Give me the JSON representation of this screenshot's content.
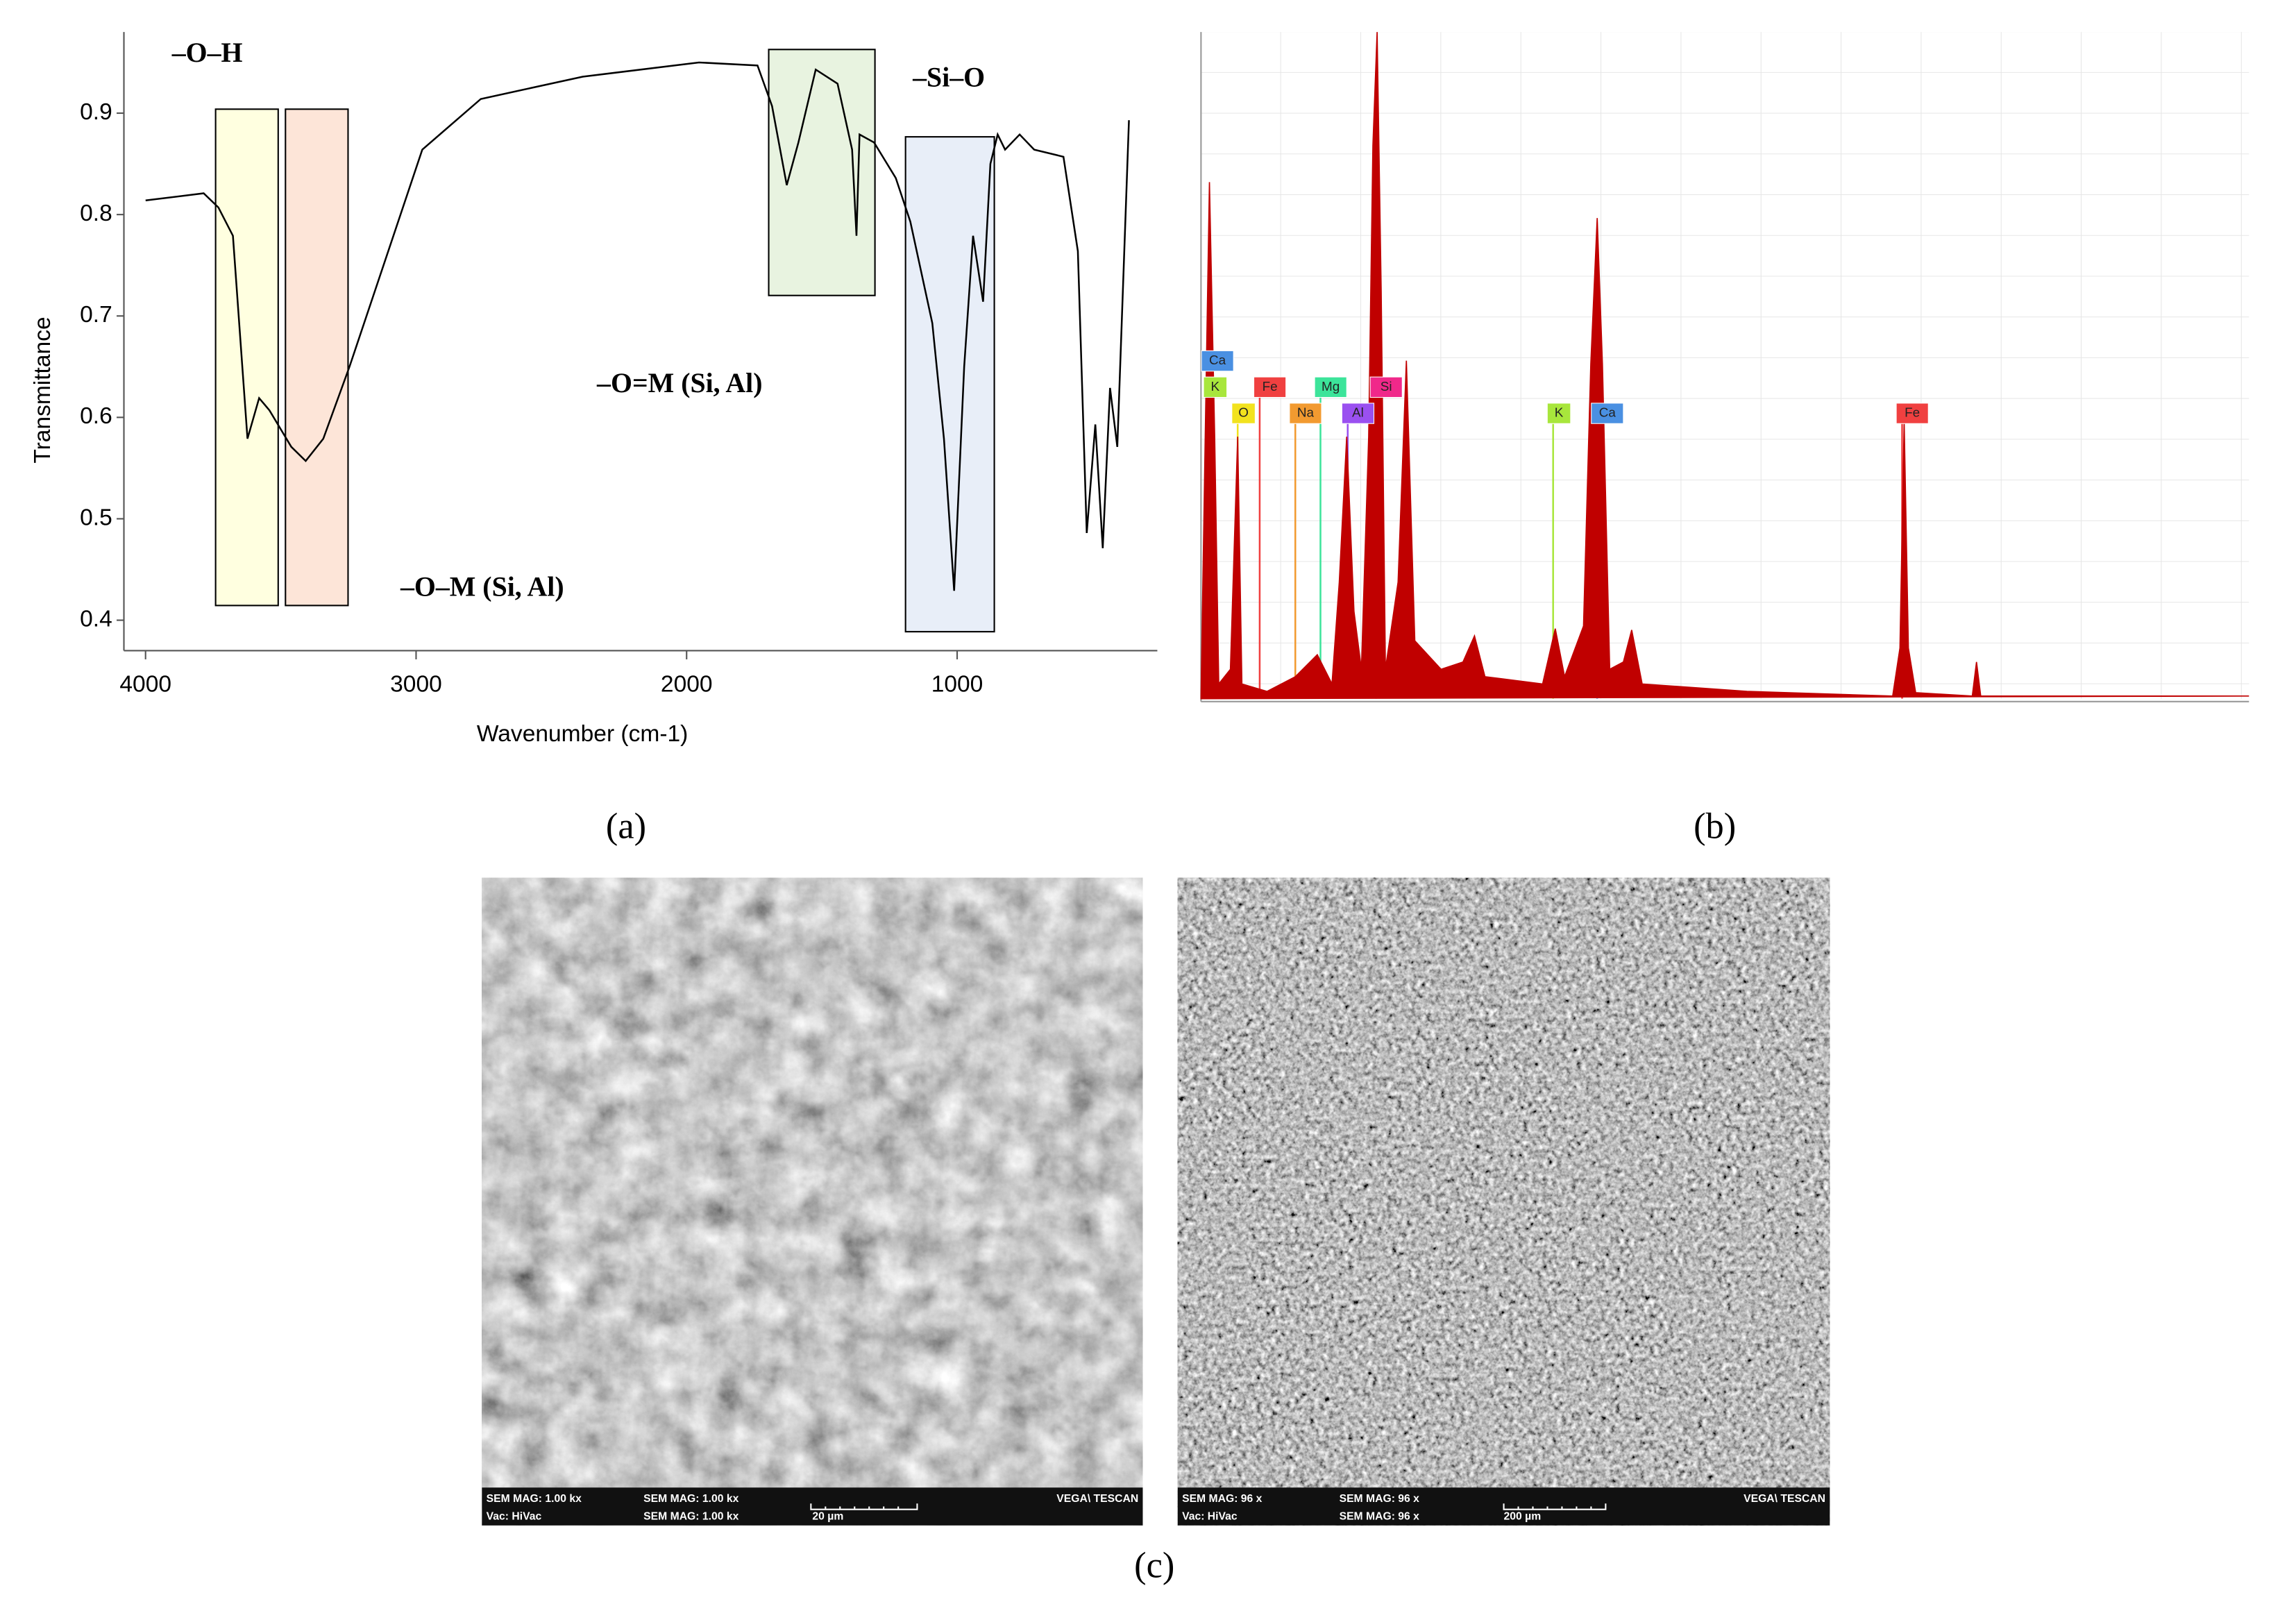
{
  "chart_data": [
    {
      "type": "line",
      "ylabel": "Transmittance",
      "xlabel": "Wavenumber (cm-1)",
      "color": "#000000",
      "x": [
        4000,
        3785,
        3731,
        3677,
        3623,
        3580,
        3542,
        3461,
        3408,
        3343,
        3246,
        3138,
        2977,
        2761,
        2384,
        1954,
        1738,
        1684,
        1630,
        1587,
        1523,
        1442,
        1388,
        1372,
        1361,
        1307,
        1227,
        1173,
        1092,
        1049,
        1011,
        974,
        941,
        904,
        877,
        850,
        823,
        769,
        715,
        607,
        554,
        521,
        489,
        462,
        435,
        408,
        365
      ],
      "values": [
        0.814,
        0.821,
        0.807,
        0.779,
        0.579,
        0.619,
        0.607,
        0.571,
        0.557,
        0.579,
        0.65,
        0.736,
        0.864,
        0.914,
        0.936,
        0.95,
        0.947,
        0.907,
        0.829,
        0.871,
        0.943,
        0.929,
        0.864,
        0.779,
        0.879,
        0.871,
        0.836,
        0.793,
        0.693,
        0.579,
        0.429,
        0.65,
        0.779,
        0.714,
        0.85,
        0.879,
        0.864,
        0.879,
        0.864,
        0.857,
        0.764,
        0.486,
        0.593,
        0.471,
        0.629,
        0.571,
        0.893
      ],
      "xlim": [
        4080,
        260
      ],
      "ylim": [
        0.37,
        0.98
      ],
      "xticks": [
        4000,
        3000,
        2000,
        1000
      ],
      "yticks": [
        0.4,
        0.5,
        0.6,
        0.7,
        0.8,
        0.9
      ],
      "annotations": [
        "–O–H",
        "–Si–O",
        "–O=M (Si, Al)",
        "–O–M (Si, Al)"
      ]
    },
    {
      "type": "area",
      "color": "#c00000",
      "x": [
        0,
        0.4,
        0.8,
        1.3,
        1.7,
        2.8,
        3.5,
        3.9,
        6.3,
        9.0,
        11.1,
        12.5,
        13.2,
        13.9,
        14.6,
        15.3,
        16.0,
        16.4,
        16.8,
        17.2,
        17.6,
        18.8,
        19.6,
        20.4,
        22.9,
        25.0,
        26.1,
        27.1,
        32.6,
        33.8,
        34.7,
        36.5,
        37.2,
        37.8,
        38.3,
        39.0,
        40.3,
        41.1,
        42.1,
        52.1,
        66.0,
        66.7,
        67.1,
        67.5,
        68.2,
        73.6,
        74.0,
        74.4,
        100
      ],
      "values": [
        0,
        39.3,
        77.5,
        39.3,
        2.2,
        4.4,
        39.3,
        2.2,
        1.1,
        3.3,
        6.6,
        2.2,
        17.5,
        39.3,
        13.1,
        4.4,
        39.3,
        83.0,
        100,
        61.1,
        4.4,
        17.5,
        50.7,
        8.7,
        4.4,
        5.5,
        9.4,
        3.3,
        2.2,
        10.5,
        3.3,
        10.9,
        50.2,
        72.1,
        50.2,
        4.4,
        5.5,
        10.3,
        2.2,
        1.1,
        0.4,
        7.6,
        41.5,
        7.6,
        0.9,
        0.4,
        5.5,
        0.4,
        0.4
      ],
      "xlim": [
        0,
        100
      ],
      "ylim": [
        0,
        100
      ],
      "elements": [
        {
          "label": "Ca",
          "color": "#4a90e2",
          "x": 0.6
        },
        {
          "label": "K",
          "color": "#a8e63c",
          "x": 0.8
        },
        {
          "label": "O",
          "color": "#f2e21e",
          "x": 3.5
        },
        {
          "label": "Fe",
          "color": "#f04040",
          "x": 5.6
        },
        {
          "label": "Na",
          "color": "#f29a30",
          "x": 9.0
        },
        {
          "label": "Mg",
          "color": "#3ce49a",
          "x": 11.4
        },
        {
          "label": "Al",
          "color": "#9a50f0",
          "x": 14.0
        },
        {
          "label": "Si",
          "color": "#f0288a",
          "x": 16.7
        },
        {
          "label": "K",
          "color": "#a8e63c",
          "x": 33.6
        },
        {
          "label": "Ca",
          "color": "#4a90e2",
          "x": 37.8
        },
        {
          "label": "Fe",
          "color": "#f04040",
          "x": 66.9
        }
      ]
    }
  ],
  "panel_labels": [
    "(a)",
    "(b)",
    "(c)"
  ],
  "images": [
    {
      "overlay": [
        "SEM MAG: 1.00 kx",
        "Vac: HiVac",
        "SEM MAG: 1.00 kx",
        "SEM MAG: 1.00 kx",
        "20 µm",
        "VEGA\\ TESCAN"
      ]
    },
    {
      "overlay": [
        "SEM MAG: 96 x",
        "Vac: HiVac",
        "SEM MAG: 96 x",
        "SEM MAG: 96 x",
        "200 µm",
        "VEGA\\ TESCAN"
      ]
    }
  ]
}
